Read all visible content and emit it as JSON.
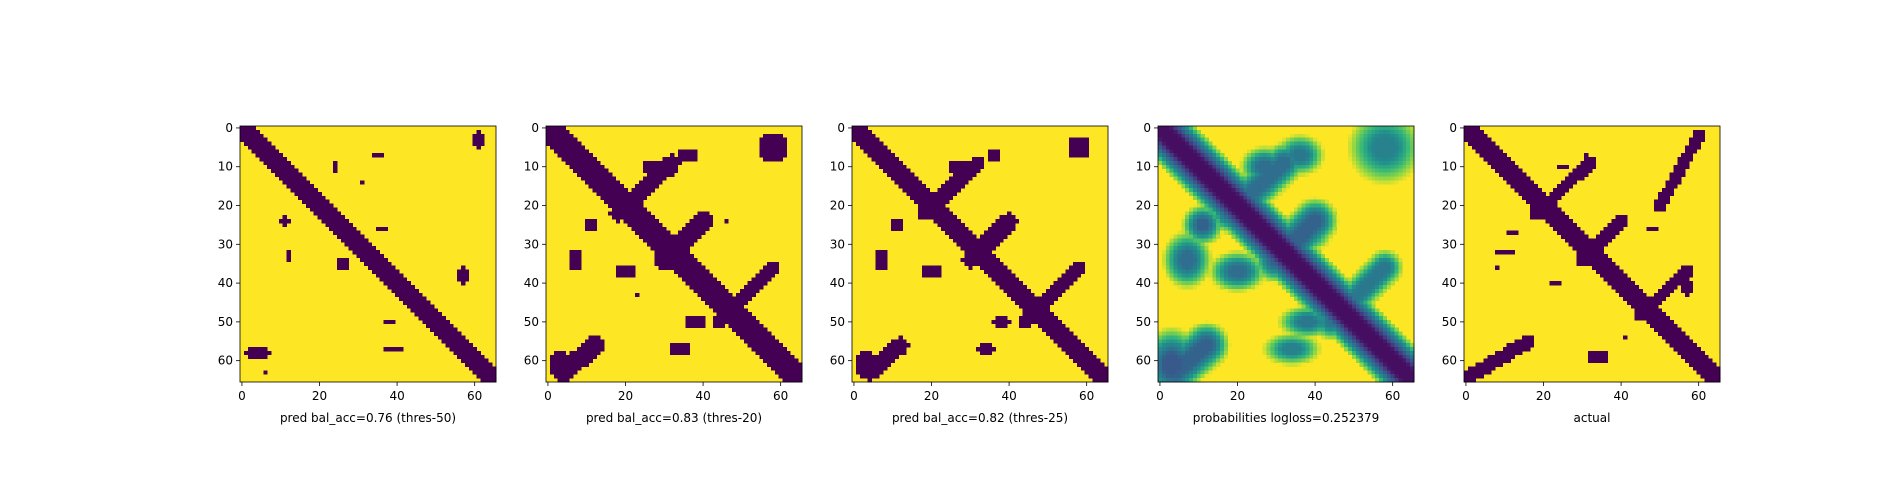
{
  "chart_data": [
    {
      "type": "heatmap",
      "xlabel": "pred bal_acc=0.76 (thres-50)",
      "xticks": [
        0,
        20,
        40,
        60
      ],
      "yticks": [
        0,
        10,
        20,
        30,
        40,
        50,
        60
      ],
      "xlim": [
        0,
        65
      ],
      "ylim": [
        65,
        0
      ],
      "matrix_size": 66,
      "colormap": "viridis",
      "value_range": [
        0,
        1
      ],
      "regions": [
        {
          "kind": "diagonal-band",
          "from": [
            0,
            0
          ],
          "to": [
            65,
            65
          ],
          "width": 2.5,
          "value": 0
        },
        {
          "kind": "blob",
          "x": 61,
          "y": 3,
          "rx": 1.2,
          "ry": 3,
          "value": 0
        },
        {
          "kind": "blob",
          "x": 35,
          "y": 7,
          "rx": 1.5,
          "ry": 1,
          "value": 0
        },
        {
          "kind": "blob",
          "x": 24,
          "y": 10,
          "rx": 1,
          "ry": 1.5,
          "value": 0
        },
        {
          "kind": "blob",
          "x": 31,
          "y": 14,
          "rx": 1,
          "ry": 1,
          "value": 0
        },
        {
          "kind": "blob",
          "x": 11,
          "y": 24,
          "rx": 1.2,
          "ry": 1.5,
          "value": 0
        },
        {
          "kind": "blob",
          "x": 36,
          "y": 26,
          "rx": 1.5,
          "ry": 1,
          "value": 0
        },
        {
          "kind": "blob",
          "x": 12,
          "y": 33,
          "rx": 1,
          "ry": 2,
          "value": 0
        },
        {
          "kind": "blob",
          "x": 26,
          "y": 35,
          "rx": 1.2,
          "ry": 2,
          "value": 0
        },
        {
          "kind": "blob",
          "x": 57,
          "y": 38,
          "rx": 1.2,
          "ry": 3,
          "value": 0
        },
        {
          "kind": "blob",
          "x": 38,
          "y": 50,
          "rx": 1.5,
          "ry": 1,
          "value": 0
        },
        {
          "kind": "blob",
          "x": 39,
          "y": 57,
          "rx": 3,
          "ry": 1,
          "value": 0
        },
        {
          "kind": "blob",
          "x": 4,
          "y": 58,
          "rx": 4,
          "ry": 1.5,
          "value": 0
        },
        {
          "kind": "blob",
          "x": 6,
          "y": 63,
          "rx": 1,
          "ry": 1,
          "value": 0
        }
      ]
    },
    {
      "type": "heatmap",
      "xlabel": "pred bal_acc=0.83 (thres-20)",
      "xticks": [
        0,
        20,
        40,
        60
      ],
      "yticks": [
        0,
        10,
        20,
        30,
        40,
        50,
        60
      ],
      "xlim": [
        0,
        65
      ],
      "ylim": [
        65,
        0
      ],
      "matrix_size": 66,
      "colormap": "viridis",
      "value_range": [
        0,
        1
      ],
      "regions": [
        {
          "kind": "diagonal-band",
          "from": [
            0,
            0
          ],
          "to": [
            65,
            65
          ],
          "width": 3,
          "value": 0
        },
        {
          "kind": "anti-band",
          "from": [
            18,
            22
          ],
          "to": [
            32,
            9
          ],
          "width": 2.2,
          "value": 0
        },
        {
          "kind": "anti-band",
          "from": [
            30,
            34
          ],
          "to": [
            40,
            24
          ],
          "width": 2.5,
          "value": 0
        },
        {
          "kind": "anti-band",
          "from": [
            44,
            50
          ],
          "to": [
            58,
            36
          ],
          "width": 1.8,
          "value": 0
        },
        {
          "kind": "anti-band",
          "from": [
            4,
            63
          ],
          "to": [
            12,
            56
          ],
          "width": 2.5,
          "value": 0
        },
        {
          "kind": "blob",
          "x": 27,
          "y": 10,
          "rx": 3,
          "ry": 2,
          "value": 0
        },
        {
          "kind": "blob",
          "x": 36,
          "y": 7,
          "rx": 3,
          "ry": 2,
          "value": 0
        },
        {
          "kind": "blob",
          "x": 58,
          "y": 5,
          "rx": 4,
          "ry": 4,
          "value": 0
        },
        {
          "kind": "blob",
          "x": 11,
          "y": 25,
          "rx": 2,
          "ry": 2,
          "value": 0
        },
        {
          "kind": "blob",
          "x": 7,
          "y": 34,
          "rx": 2,
          "ry": 3,
          "value": 0
        },
        {
          "kind": "blob",
          "x": 20,
          "y": 37,
          "rx": 3,
          "ry": 2,
          "value": 0
        },
        {
          "kind": "blob",
          "x": 37,
          "y": 27,
          "rx": 3,
          "ry": 2,
          "value": 0
        },
        {
          "kind": "blob",
          "x": 38,
          "y": 50,
          "rx": 3,
          "ry": 1.5,
          "value": 0
        },
        {
          "kind": "blob",
          "x": 34,
          "y": 57,
          "rx": 3,
          "ry": 1.5,
          "value": 0
        },
        {
          "kind": "blob",
          "x": 3,
          "y": 61,
          "rx": 3,
          "ry": 4,
          "value": 0
        },
        {
          "kind": "blob",
          "x": 46,
          "y": 24,
          "rx": 1,
          "ry": 1,
          "value": 0
        },
        {
          "kind": "blob",
          "x": 23,
          "y": 43,
          "rx": 1,
          "ry": 1,
          "value": 0
        }
      ]
    },
    {
      "type": "heatmap",
      "xlabel": "pred bal_acc=0.82 (thres-25)",
      "xticks": [
        0,
        20,
        40,
        60
      ],
      "yticks": [
        0,
        10,
        20,
        30,
        40,
        50,
        60
      ],
      "xlim": [
        0,
        65
      ],
      "ylim": [
        65,
        0
      ],
      "matrix_size": 66,
      "colormap": "viridis",
      "value_range": [
        0,
        1
      ],
      "regions": [
        {
          "kind": "diagonal-band",
          "from": [
            0,
            0
          ],
          "to": [
            65,
            65
          ],
          "width": 2.8,
          "value": 0
        },
        {
          "kind": "anti-band",
          "from": [
            18,
            22
          ],
          "to": [
            32,
            9
          ],
          "width": 2,
          "value": 0
        },
        {
          "kind": "anti-band",
          "from": [
            30,
            34
          ],
          "to": [
            40,
            24
          ],
          "width": 2.2,
          "value": 0
        },
        {
          "kind": "anti-band",
          "from": [
            44,
            50
          ],
          "to": [
            58,
            36
          ],
          "width": 1.6,
          "value": 0
        },
        {
          "kind": "anti-band",
          "from": [
            4,
            63
          ],
          "to": [
            12,
            56
          ],
          "width": 2.2,
          "value": 0
        },
        {
          "kind": "blob",
          "x": 27,
          "y": 10,
          "rx": 2.5,
          "ry": 2,
          "value": 0
        },
        {
          "kind": "blob",
          "x": 36,
          "y": 7,
          "rx": 2,
          "ry": 1.5,
          "value": 0
        },
        {
          "kind": "blob",
          "x": 58,
          "y": 5,
          "rx": 3,
          "ry": 3,
          "value": 0
        },
        {
          "kind": "blob",
          "x": 11,
          "y": 25,
          "rx": 2,
          "ry": 2,
          "value": 0
        },
        {
          "kind": "blob",
          "x": 7,
          "y": 34,
          "rx": 2,
          "ry": 2.5,
          "value": 0
        },
        {
          "kind": "blob",
          "x": 20,
          "y": 37,
          "rx": 2.5,
          "ry": 2,
          "value": 0
        },
        {
          "kind": "blob",
          "x": 37,
          "y": 27,
          "rx": 2.5,
          "ry": 1.5,
          "value": 0
        },
        {
          "kind": "blob",
          "x": 38,
          "y": 50,
          "rx": 2.5,
          "ry": 1.5,
          "value": 0
        },
        {
          "kind": "blob",
          "x": 34,
          "y": 57,
          "rx": 2.5,
          "ry": 1.5,
          "value": 0
        },
        {
          "kind": "blob",
          "x": 3,
          "y": 61,
          "rx": 2.5,
          "ry": 3.5,
          "value": 0
        }
      ]
    },
    {
      "type": "heatmap",
      "xlabel": "probabilities logloss=0.252379",
      "xticks": [
        0,
        20,
        40,
        60
      ],
      "yticks": [
        0,
        10,
        20,
        30,
        40,
        50,
        60
      ],
      "xlim": [
        0,
        65
      ],
      "ylim": [
        65,
        0
      ],
      "matrix_size": 66,
      "colormap": "viridis",
      "value_range": [
        0,
        1
      ],
      "continuous": true,
      "regions": [
        {
          "kind": "diagonal-band",
          "from": [
            0,
            0
          ],
          "to": [
            65,
            65
          ],
          "width": 3.2,
          "value": 0.05
        },
        {
          "kind": "anti-band",
          "from": [
            18,
            22
          ],
          "to": [
            32,
            9
          ],
          "width": 2.5,
          "value": 0.45
        },
        {
          "kind": "anti-band",
          "from": [
            30,
            34
          ],
          "to": [
            40,
            24
          ],
          "width": 2.8,
          "value": 0.4
        },
        {
          "kind": "anti-band",
          "from": [
            44,
            50
          ],
          "to": [
            58,
            36
          ],
          "width": 2.2,
          "value": 0.5
        },
        {
          "kind": "anti-band",
          "from": [
            4,
            63
          ],
          "to": [
            12,
            56
          ],
          "width": 2.8,
          "value": 0.4
        },
        {
          "kind": "blob",
          "x": 27,
          "y": 10,
          "rx": 3,
          "ry": 2.5,
          "value": 0.45
        },
        {
          "kind": "blob",
          "x": 36,
          "y": 7,
          "rx": 3,
          "ry": 2.5,
          "value": 0.5
        },
        {
          "kind": "blob",
          "x": 58,
          "y": 5,
          "rx": 4.5,
          "ry": 4.5,
          "value": 0.55
        },
        {
          "kind": "blob",
          "x": 11,
          "y": 25,
          "rx": 2.5,
          "ry": 2.5,
          "value": 0.4
        },
        {
          "kind": "blob",
          "x": 7,
          "y": 34,
          "rx": 3,
          "ry": 3.5,
          "value": 0.45
        },
        {
          "kind": "blob",
          "x": 20,
          "y": 37,
          "rx": 3.5,
          "ry": 2.5,
          "value": 0.45
        },
        {
          "kind": "blob",
          "x": 37,
          "y": 27,
          "rx": 3.5,
          "ry": 2.5,
          "value": 0.45
        },
        {
          "kind": "blob",
          "x": 38,
          "y": 50,
          "rx": 3.5,
          "ry": 2,
          "value": 0.5
        },
        {
          "kind": "blob",
          "x": 34,
          "y": 57,
          "rx": 3.5,
          "ry": 2,
          "value": 0.55
        },
        {
          "kind": "blob",
          "x": 3,
          "y": 61,
          "rx": 3.5,
          "ry": 4.5,
          "value": 0.35
        }
      ]
    },
    {
      "type": "heatmap",
      "xlabel": "actual",
      "xticks": [
        0,
        20,
        40,
        60
      ],
      "yticks": [
        0,
        10,
        20,
        30,
        40,
        50,
        60
      ],
      "xlim": [
        0,
        65
      ],
      "ylim": [
        65,
        0
      ],
      "matrix_size": 66,
      "colormap": "viridis",
      "value_range": [
        0,
        1
      ],
      "regions": [
        {
          "kind": "diagonal-band",
          "from": [
            0,
            0
          ],
          "to": [
            65,
            65
          ],
          "width": 2.8,
          "value": 0
        },
        {
          "kind": "anti-band",
          "from": [
            18,
            22
          ],
          "to": [
            32,
            9
          ],
          "width": 1.6,
          "value": 0
        },
        {
          "kind": "anti-band",
          "from": [
            30,
            34
          ],
          "to": [
            40,
            24
          ],
          "width": 2,
          "value": 0
        },
        {
          "kind": "anti-band",
          "from": [
            45,
            48
          ],
          "to": [
            57,
            37
          ],
          "width": 1.5,
          "value": 0
        },
        {
          "kind": "anti-band",
          "from": [
            1,
            64
          ],
          "to": [
            16,
            55
          ],
          "width": 1.8,
          "value": 0
        },
        {
          "kind": "anti-band",
          "from": [
            50,
            20
          ],
          "to": [
            60,
            2
          ],
          "width": 1.5,
          "value": 0
        },
        {
          "kind": "blob",
          "x": 25,
          "y": 10,
          "rx": 1.5,
          "ry": 1,
          "value": 0
        },
        {
          "kind": "blob",
          "x": 31,
          "y": 8,
          "rx": 1,
          "ry": 1.5,
          "value": 0
        },
        {
          "kind": "blob",
          "x": 12,
          "y": 27,
          "rx": 2,
          "ry": 1,
          "value": 0
        },
        {
          "kind": "blob",
          "x": 10,
          "y": 32,
          "rx": 3,
          "ry": 1,
          "value": 0
        },
        {
          "kind": "blob",
          "x": 8,
          "y": 36,
          "rx": 1,
          "ry": 1,
          "value": 0
        },
        {
          "kind": "blob",
          "x": 23,
          "y": 40,
          "rx": 2,
          "ry": 1,
          "value": 0
        },
        {
          "kind": "blob",
          "x": 48,
          "y": 26,
          "rx": 1.5,
          "ry": 1,
          "value": 0
        },
        {
          "kind": "blob",
          "x": 41,
          "y": 54,
          "rx": 1,
          "ry": 1,
          "value": 0
        },
        {
          "kind": "blob",
          "x": 34,
          "y": 59,
          "rx": 3,
          "ry": 1.5,
          "value": 0
        },
        {
          "kind": "blob",
          "x": 57,
          "y": 41,
          "rx": 1.2,
          "ry": 3,
          "value": 0
        }
      ]
    }
  ]
}
